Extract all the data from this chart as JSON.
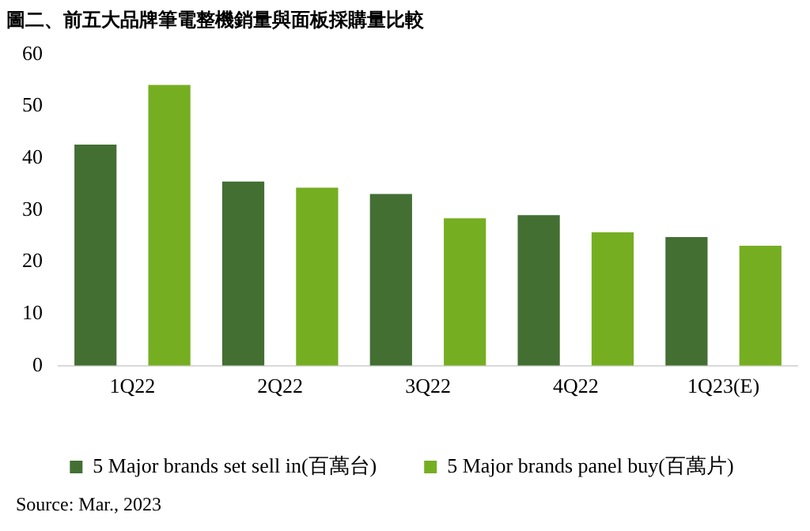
{
  "chart_data": {
    "type": "bar",
    "title": "圖二、前五大品牌筆電整機銷量與面板採購量比較",
    "categories": [
      "1Q22",
      "2Q22",
      "3Q22",
      "4Q22",
      "1Q23(E)"
    ],
    "series": [
      {
        "name": "5 Major brands set sell in(百萬台)",
        "color": "#436f33",
        "values": [
          42.6,
          35.5,
          33.1,
          29.0,
          24.8
        ]
      },
      {
        "name": "5 Major brands panel buy(百萬片)",
        "color": "#76ae22",
        "values": [
          54.1,
          34.3,
          28.4,
          25.7,
          23.1
        ]
      }
    ],
    "ylim": [
      0,
      60
    ],
    "yticks": [
      0,
      10,
      20,
      30,
      40,
      50,
      60
    ],
    "grid": false,
    "legend": "bottom",
    "annotations": [
      "Source: Mar., 2023"
    ]
  }
}
